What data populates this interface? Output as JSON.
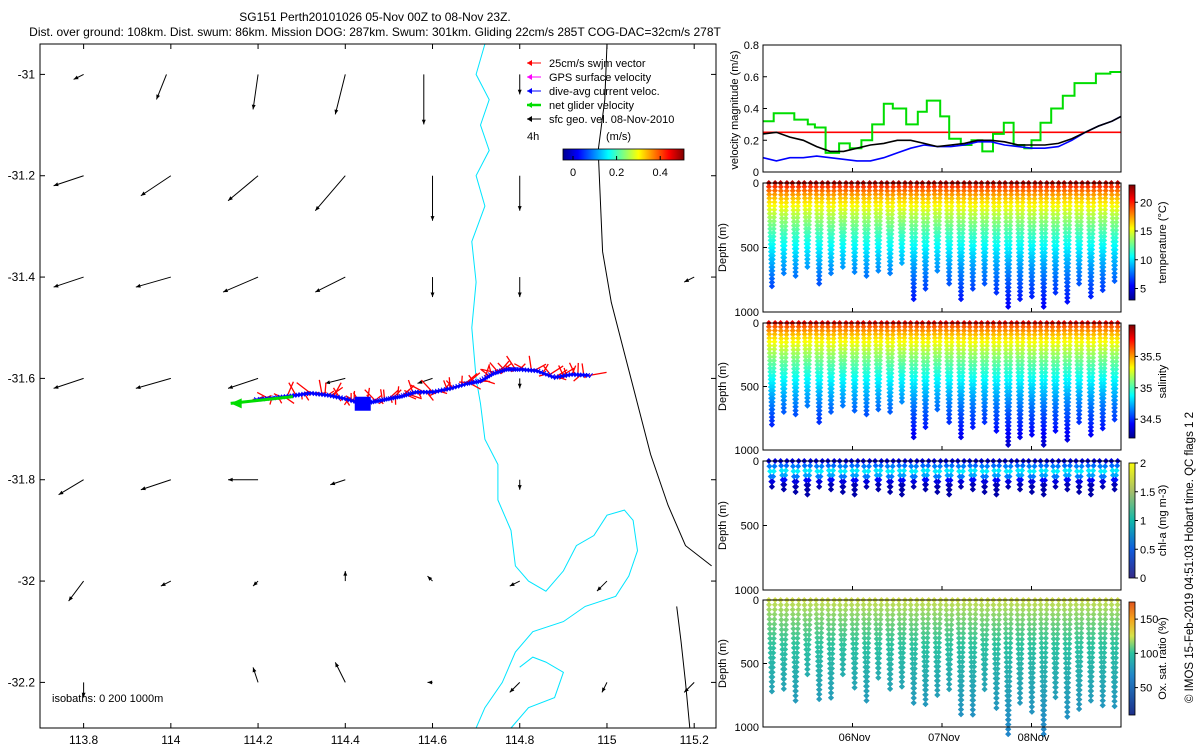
{
  "title": {
    "line1": "SG151 Perth20101026 05-Nov 00Z to 08-Nov 23Z.",
    "line2": "Dist. over ground: 108km. Dist. swum: 86km. Mission DOG: 287km. Swum: 301km. Gliding 22cm/s 285T COG-DAC=32cm/s 278T"
  },
  "copyright": "© IMOS 15-Feb-2019 04:51:03 Hobart time. QC flags 1  2",
  "colors": {
    "swjm": "#ff0000",
    "gps": "#ff00ff",
    "dac": "#0000ff",
    "net": "#00dd00",
    "geo": "#000000",
    "coast": "#000000",
    "isobath": "#00e5ff",
    "vel_red_line": "#ff0000"
  },
  "chart_data": [
    {
      "id": "map",
      "type": "scatter",
      "title": "",
      "xlabel": "",
      "ylabel": "",
      "xlim": [
        113.7,
        115.25
      ],
      "ylim": [
        -32.29,
        -30.94
      ],
      "xticks": [
        113.8,
        114,
        114.2,
        114.4,
        114.6,
        114.8,
        115,
        115.2
      ],
      "xtick_labels": [
        "113.8",
        "114",
        "114.2",
        "114.4",
        "114.6",
        "114.8",
        "115",
        "115.2"
      ],
      "yticks": [
        -31,
        -31.2,
        -31.4,
        -31.6,
        -31.8,
        -32,
        -32.2
      ],
      "ytick_labels": [
        "-31",
        "-31.2",
        "-31.4",
        "-31.6",
        "-31.8",
        "-32",
        "-32.2"
      ],
      "isobath_label": "isobaths: 0   200  1000m",
      "legend": {
        "position": "top-right",
        "items": [
          "25cm/s swjm vector",
          "GPS surface velocity",
          "dive-avg current veloc.",
          "net glider velocity",
          "sfc geo. vel. 08-Nov-2010"
        ],
        "scale_label": "4h",
        "colorbar_label": "(m/s)",
        "colorbar_range": [
          0,
          0.5
        ],
        "colorbar_ticks": [
          0,
          0.2,
          0.4
        ],
        "colorbar_tick_labels": [
          "0",
          "0.2",
          "0.4"
        ]
      },
      "geo_vectors": [
        [
          113.8,
          -31.0,
          0.02,
          -0.01
        ],
        [
          113.99,
          -31.0,
          0.02,
          -0.05
        ],
        [
          114.2,
          -31.0,
          0.01,
          -0.07
        ],
        [
          114.4,
          -31.0,
          0.02,
          -0.08
        ],
        [
          114.58,
          -31.0,
          0.0,
          -0.1
        ],
        [
          114.8,
          -31.0,
          0.0,
          -0.04
        ],
        [
          113.8,
          -31.2,
          0.06,
          -0.02
        ],
        [
          114.0,
          -31.2,
          0.06,
          -0.04
        ],
        [
          114.2,
          -31.2,
          0.06,
          -0.05
        ],
        [
          114.4,
          -31.2,
          0.06,
          -0.07
        ],
        [
          114.6,
          -31.2,
          0.0,
          -0.09
        ],
        [
          114.8,
          -31.2,
          0.0,
          -0.07
        ],
        [
          113.8,
          -31.4,
          0.06,
          -0.02
        ],
        [
          114.0,
          -31.4,
          0.07,
          -0.02
        ],
        [
          114.2,
          -31.4,
          0.07,
          -0.03
        ],
        [
          114.4,
          -31.4,
          0.06,
          -0.03
        ],
        [
          114.6,
          -31.4,
          0.0,
          -0.04
        ],
        [
          114.8,
          -31.4,
          0.0,
          -0.04
        ],
        [
          113.8,
          -31.6,
          0.06,
          -0.02
        ],
        [
          114.0,
          -31.6,
          0.07,
          -0.02
        ],
        [
          114.2,
          -31.6,
          0.06,
          -0.02
        ],
        [
          114.4,
          -31.6,
          0.04,
          -0.01
        ],
        [
          114.6,
          -31.6,
          0.03,
          -0.01
        ],
        [
          114.8,
          -31.6,
          0.0,
          -0.02
        ],
        [
          113.8,
          -31.8,
          0.05,
          -0.03
        ],
        [
          114.0,
          -31.8,
          0.06,
          -0.02
        ],
        [
          114.2,
          -31.8,
          0.06,
          0.0
        ],
        [
          114.4,
          -31.8,
          0.03,
          -0.01
        ],
        [
          114.8,
          -31.8,
          0.0,
          -0.02
        ],
        [
          113.8,
          -32.0,
          0.03,
          -0.04
        ],
        [
          114.0,
          -32.0,
          0.02,
          -0.01
        ],
        [
          114.2,
          -32.0,
          0.01,
          -0.01
        ],
        [
          114.4,
          -32.0,
          0.0,
          0.02
        ],
        [
          114.6,
          -32.0,
          0.01,
          0.01
        ],
        [
          114.8,
          -32.0,
          0.02,
          -0.01
        ],
        [
          115.0,
          -32.0,
          0.02,
          -0.02
        ],
        [
          113.8,
          -32.2,
          0.0,
          -0.03
        ],
        [
          114.2,
          -32.2,
          0.01,
          0.03
        ],
        [
          114.4,
          -32.2,
          0.02,
          0.04
        ],
        [
          114.6,
          -32.2,
          0.01,
          0.0
        ],
        [
          114.8,
          -32.2,
          0.02,
          -0.02
        ],
        [
          115.0,
          -32.2,
          0.01,
          -0.02
        ],
        [
          115.2,
          -32.2,
          0.02,
          -0.02
        ],
        [
          115.2,
          -31.4,
          0.02,
          -0.01
        ]
      ],
      "track": [
        [
          114.96,
          -31.594
        ],
        [
          114.92,
          -31.592
        ],
        [
          114.88,
          -31.598
        ],
        [
          114.84,
          -31.585
        ],
        [
          114.8,
          -31.582
        ],
        [
          114.77,
          -31.582
        ],
        [
          114.74,
          -31.59
        ],
        [
          114.71,
          -31.605
        ],
        [
          114.68,
          -31.61
        ],
        [
          114.64,
          -31.62
        ],
        [
          114.6,
          -31.627
        ],
        [
          114.56,
          -31.627
        ],
        [
          114.53,
          -31.635
        ],
        [
          114.5,
          -31.64
        ],
        [
          114.47,
          -31.645
        ],
        [
          114.44,
          -31.65
        ],
        [
          114.4,
          -31.64
        ],
        [
          114.36,
          -31.633
        ],
        [
          114.32,
          -31.629
        ],
        [
          114.28,
          -31.634
        ],
        [
          114.24,
          -31.638
        ],
        [
          114.19,
          -31.642
        ]
      ],
      "net_velocity": [
        114.19,
        -31.642,
        -0.088,
        -0.012
      ],
      "coastline": [
        [
          115.0,
          -30.94
        ],
        [
          114.995,
          -31.05
        ],
        [
          114.98,
          -31.15
        ],
        [
          114.985,
          -31.25
        ],
        [
          114.99,
          -31.35
        ],
        [
          115.01,
          -31.45
        ],
        [
          115.04,
          -31.55
        ],
        [
          115.07,
          -31.65
        ],
        [
          115.1,
          -31.75
        ],
        [
          115.14,
          -31.85
        ],
        [
          115.18,
          -31.93
        ],
        [
          115.24,
          -31.97
        ]
      ],
      "coastline_south": [
        [
          115.16,
          -32.05
        ],
        [
          115.17,
          -32.12
        ],
        [
          115.18,
          -32.2
        ],
        [
          115.19,
          -32.29
        ]
      ],
      "isobath_200": [
        [
          114.72,
          -30.94
        ],
        [
          114.7,
          -31.0
        ],
        [
          114.73,
          -31.05
        ],
        [
          114.71,
          -31.1
        ],
        [
          114.73,
          -31.15
        ],
        [
          114.7,
          -31.2
        ],
        [
          114.72,
          -31.26
        ],
        [
          114.69,
          -31.33
        ],
        [
          114.7,
          -31.41
        ],
        [
          114.69,
          -31.5
        ],
        [
          114.7,
          -31.6
        ],
        [
          114.71,
          -31.65
        ],
        [
          114.72,
          -31.72
        ],
        [
          114.75,
          -31.77
        ],
        [
          114.75,
          -31.84
        ],
        [
          114.78,
          -31.9
        ],
        [
          114.79,
          -31.97
        ],
        [
          114.82,
          -32.0
        ],
        [
          114.86,
          -32.02
        ],
        [
          114.9,
          -31.98
        ],
        [
          114.93,
          -31.93
        ],
        [
          114.97,
          -31.91
        ],
        [
          115.0,
          -31.87
        ],
        [
          115.04,
          -31.86
        ],
        [
          115.06,
          -31.88
        ],
        [
          115.07,
          -31.94
        ],
        [
          115.05,
          -31.99
        ],
        [
          115.02,
          -32.03
        ],
        [
          114.95,
          -32.05
        ],
        [
          114.9,
          -32.08
        ],
        [
          114.83,
          -32.1
        ],
        [
          114.79,
          -32.14
        ],
        [
          114.76,
          -32.2
        ],
        [
          114.72,
          -32.25
        ],
        [
          114.7,
          -32.29
        ]
      ],
      "isobath_200b": [
        [
          114.78,
          -32.29
        ],
        [
          114.82,
          -32.25
        ],
        [
          114.88,
          -32.23
        ],
        [
          114.9,
          -32.18
        ],
        [
          114.86,
          -32.16
        ],
        [
          114.83,
          -32.15
        ],
        [
          114.8,
          -32.17
        ]
      ]
    },
    {
      "id": "velocity",
      "type": "line",
      "title": "",
      "xlabel": "",
      "ylabel": "velocity magnitude (m/s)",
      "xlim": [
        5.0,
        9.0
      ],
      "ylim": [
        0,
        0.8
      ],
      "yticks": [
        0,
        0.2,
        0.4,
        0.6,
        0.8
      ],
      "ytick_labels": [
        "0",
        "0.2",
        "0.4",
        "0.6",
        "0.8"
      ],
      "xticks": [
        6,
        7,
        8
      ],
      "xtick_labels": [
        "06Nov",
        "07Nov",
        "08Nov"
      ],
      "series": [
        {
          "name": "reference 25cm/s",
          "color": "#ff0000",
          "x": [
            5.0,
            9.0
          ],
          "y": [
            0.25,
            0.25
          ]
        },
        {
          "name": "net glider velocity",
          "color": "#00dd00",
          "step": true,
          "x": [
            5.0,
            5.12,
            5.35,
            5.5,
            5.58,
            5.7,
            5.85,
            5.97,
            6.1,
            6.22,
            6.35,
            6.45,
            6.6,
            6.73,
            6.83,
            6.98,
            7.08,
            7.21,
            7.33,
            7.45,
            7.57,
            7.69,
            7.8,
            7.92,
            8.0,
            8.1,
            8.22,
            8.35,
            8.48,
            8.6,
            8.72,
            8.88,
            9.0
          ],
          "y": [
            0.32,
            0.37,
            0.33,
            0.3,
            0.28,
            0.12,
            0.18,
            0.15,
            0.2,
            0.3,
            0.43,
            0.4,
            0.3,
            0.38,
            0.45,
            0.35,
            0.21,
            0.17,
            0.2,
            0.13,
            0.24,
            0.31,
            0.17,
            0.15,
            0.2,
            0.31,
            0.4,
            0.48,
            0.56,
            0.56,
            0.62,
            0.63,
            0.63
          ]
        },
        {
          "name": "dive-avg current",
          "color": "#0000ff",
          "x": [
            5.0,
            5.15,
            5.3,
            5.45,
            5.6,
            5.75,
            5.9,
            6.05,
            6.2,
            6.35,
            6.5,
            6.65,
            6.8,
            6.95,
            7.1,
            7.25,
            7.4,
            7.55,
            7.7,
            7.85,
            8.0,
            8.15,
            8.3,
            8.45,
            8.6,
            8.75,
            8.9,
            9.0
          ],
          "y": [
            0.09,
            0.07,
            0.09,
            0.09,
            0.1,
            0.09,
            0.08,
            0.07,
            0.07,
            0.09,
            0.12,
            0.15,
            0.17,
            0.16,
            0.16,
            0.17,
            0.19,
            0.19,
            0.17,
            0.16,
            0.15,
            0.15,
            0.16,
            0.2,
            0.25,
            0.29,
            0.32,
            0.35
          ]
        },
        {
          "name": "surface velocity",
          "color": "#000000",
          "x": [
            5.0,
            5.15,
            5.3,
            5.45,
            5.6,
            5.75,
            5.9,
            6.05,
            6.2,
            6.35,
            6.5,
            6.65,
            6.8,
            6.95,
            7.1,
            7.25,
            7.4,
            7.55,
            7.7,
            7.85,
            8.0,
            8.15,
            8.3,
            8.45,
            8.6,
            8.75,
            8.9,
            9.0
          ],
          "y": [
            0.24,
            0.25,
            0.22,
            0.2,
            0.16,
            0.13,
            0.13,
            0.15,
            0.17,
            0.18,
            0.2,
            0.2,
            0.18,
            0.16,
            0.17,
            0.18,
            0.2,
            0.2,
            0.19,
            0.17,
            0.17,
            0.17,
            0.18,
            0.21,
            0.25,
            0.29,
            0.32,
            0.35
          ]
        }
      ]
    },
    {
      "id": "temperature",
      "type": "scatter",
      "title": "",
      "ylabel": "Depth (m)",
      "colorbar_label": "temperature (°C)",
      "ylim": [
        1000,
        0
      ],
      "yticks": [
        0,
        500,
        1000
      ],
      "ytick_labels": [
        "0",
        "500",
        "1000"
      ],
      "clim": [
        3,
        23
      ],
      "cticks": [
        5,
        10,
        15,
        20
      ],
      "ctick_labels": [
        "5",
        "10",
        "15",
        "20"
      ],
      "dives": 30,
      "max_depth": [
        800,
        700,
        720,
        650,
        780,
        700,
        650,
        690,
        720,
        680,
        700,
        620,
        900,
        820,
        680,
        780,
        900,
        820,
        780,
        850,
        960,
        900,
        880,
        960,
        850,
        920,
        780,
        880,
        830,
        760
      ]
    },
    {
      "id": "salinity",
      "type": "scatter",
      "title": "",
      "ylabel": "Depth (m)",
      "colorbar_label": "salinity",
      "ylim": [
        1000,
        0
      ],
      "yticks": [
        0,
        500,
        1000
      ],
      "ytick_labels": [
        "0",
        "500",
        "1000"
      ],
      "clim": [
        34.2,
        36.0
      ],
      "cticks": [
        34.5,
        35,
        35.5
      ],
      "ctick_labels": [
        "34.5",
        "35",
        "35.5"
      ]
    },
    {
      "id": "chla",
      "type": "scatter",
      "title": "",
      "ylabel": "Depth (m)",
      "colorbar_label": "chl-a (mg m-3)",
      "ylim": [
        1000,
        0
      ],
      "yticks": [
        0,
        500,
        1000
      ],
      "ytick_labels": [
        "0",
        "500",
        "1000"
      ],
      "clim": [
        0,
        2
      ],
      "cticks": [
        0,
        0.5,
        1,
        1.5,
        2
      ],
      "ctick_labels": [
        "0",
        "0.5",
        "1",
        "1.5",
        "2"
      ],
      "max_depth": 250
    },
    {
      "id": "oxygen",
      "type": "scatter",
      "title": "",
      "ylabel": "Depth (m)",
      "colorbar_label": "Ox. sat. ratio (%)",
      "xlabel": "",
      "ylim": [
        1000,
        0
      ],
      "yticks": [
        0,
        500,
        1000
      ],
      "ytick_labels": [
        "0",
        "500",
        "1000"
      ],
      "clim": [
        10,
        175
      ],
      "cticks": [
        50,
        100,
        150
      ],
      "ctick_labels": [
        "50",
        "100",
        "150"
      ],
      "xticks": [
        6,
        7,
        8
      ],
      "xtick_labels": [
        "06Nov",
        "07Nov",
        "08Nov"
      ]
    }
  ]
}
